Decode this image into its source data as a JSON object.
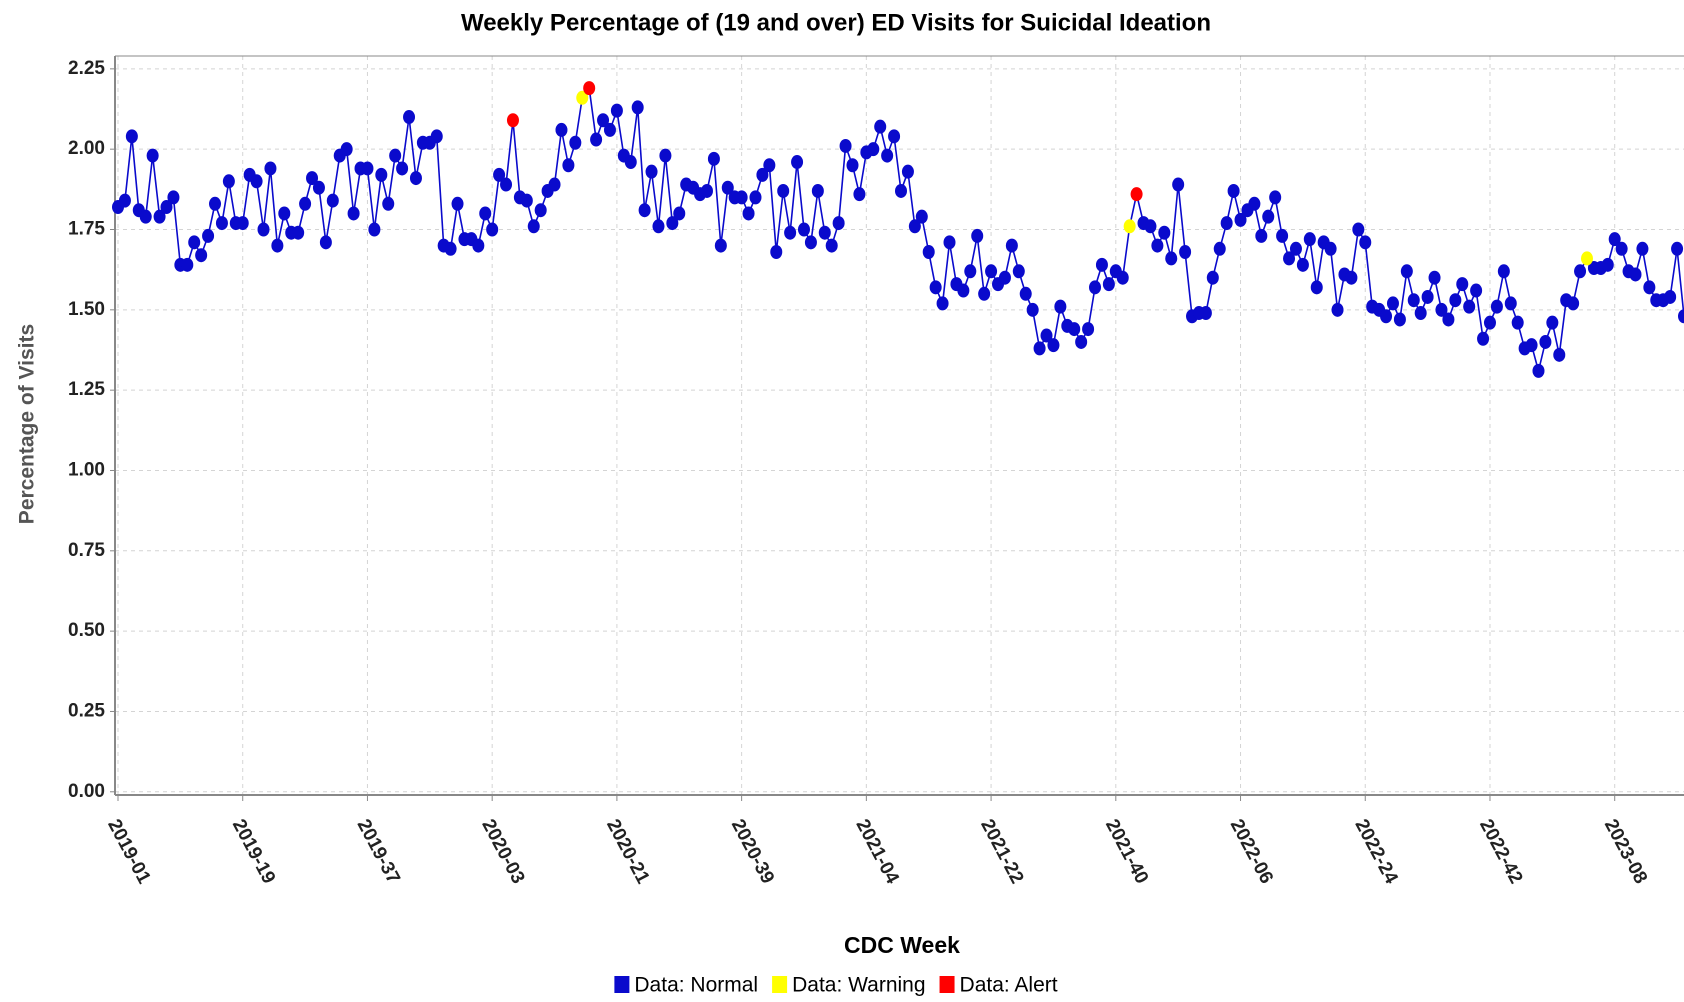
{
  "chart_data": {
    "type": "line",
    "title": "Weekly Percentage of (19 and over) ED Visits for Suicidal Ideation",
    "x_label": "CDC Week",
    "y_label": "Percentage of Visits",
    "categories": [
      "2019-01",
      null,
      null,
      null,
      null,
      null,
      null,
      null,
      null,
      null,
      null,
      null,
      null,
      null,
      null,
      null,
      null,
      null,
      "2019-19",
      null,
      null,
      null,
      null,
      null,
      null,
      null,
      null,
      null,
      null,
      null,
      null,
      null,
      null,
      null,
      null,
      null,
      "2019-37",
      null,
      null,
      null,
      null,
      null,
      null,
      null,
      null,
      null,
      null,
      null,
      null,
      null,
      null,
      null,
      null,
      null,
      "2020-03",
      null,
      null,
      null,
      null,
      null,
      null,
      null,
      null,
      null,
      null,
      null,
      null,
      null,
      null,
      null,
      null,
      null,
      "2020-21",
      null,
      null,
      null,
      null,
      null,
      null,
      null,
      null,
      null,
      null,
      null,
      null,
      null,
      null,
      null,
      null,
      null,
      "2020-39",
      null,
      null,
      null,
      null,
      null,
      null,
      null,
      null,
      null,
      null,
      null,
      null,
      null,
      null,
      null,
      null,
      null,
      "2021-04",
      null,
      null,
      null,
      null,
      null,
      null,
      null,
      null,
      null,
      null,
      null,
      null,
      null,
      null,
      null,
      null,
      null,
      "2021-22",
      null,
      null,
      null,
      null,
      null,
      null,
      null,
      null,
      null,
      null,
      null,
      null,
      null,
      null,
      null,
      null,
      null,
      "2021-40",
      null,
      null,
      null,
      null,
      null,
      null,
      null,
      null,
      null,
      null,
      null,
      null,
      null,
      null,
      null,
      null,
      null,
      "2022-06",
      null,
      null,
      null,
      null,
      null,
      null,
      null,
      null,
      null,
      null,
      null,
      null,
      null,
      null,
      null,
      null,
      null,
      "2022-24",
      null,
      null,
      null,
      null,
      null,
      null,
      null,
      null,
      null,
      null,
      null,
      null,
      null,
      null,
      null,
      null,
      null,
      "2022-42",
      null,
      null,
      null,
      null,
      null,
      null,
      null,
      null,
      null,
      null,
      null,
      null,
      null,
      null,
      null,
      null,
      null,
      "2023-08",
      null,
      null,
      null,
      null,
      null,
      null,
      null,
      null,
      null,
      null
    ],
    "series": [
      {
        "name": "Data: Normal",
        "color": "#0a0acc",
        "values": [
          1.82,
          1.84,
          2.04,
          1.81,
          1.79,
          1.98,
          1.79,
          1.82,
          1.85,
          1.64,
          1.64,
          1.71,
          1.67,
          1.73,
          1.83,
          1.77,
          1.9,
          1.77,
          1.77,
          1.92,
          1.9,
          1.75,
          1.94,
          1.7,
          1.8,
          1.74,
          1.74,
          1.83,
          1.91,
          1.88,
          1.71,
          1.84,
          1.98,
          2.0,
          1.8,
          1.94,
          1.94,
          1.75,
          1.92,
          1.83,
          1.98,
          1.94,
          2.1,
          1.91,
          2.02,
          2.02,
          2.04,
          1.7,
          1.69,
          1.83,
          1.72,
          1.72,
          1.7,
          1.8,
          1.75,
          1.92,
          1.89,
          null,
          1.85,
          1.84,
          1.76,
          1.81,
          1.87,
          1.89,
          2.06,
          1.95,
          2.02,
          null,
          null,
          2.03,
          2.09,
          2.06,
          2.12,
          1.98,
          1.96,
          2.13,
          1.81,
          1.93,
          1.76,
          1.98,
          1.77,
          1.8,
          1.89,
          1.88,
          1.86,
          1.87,
          1.97,
          1.7,
          1.88,
          1.85,
          1.85,
          1.8,
          1.85,
          1.92,
          1.95,
          1.68,
          1.87,
          1.74,
          1.96,
          1.75,
          1.71,
          1.87,
          1.74,
          1.7,
          1.77,
          2.01,
          1.95,
          1.86,
          1.99,
          2.0,
          2.07,
          1.98,
          2.04,
          1.87,
          1.93,
          1.76,
          1.79,
          1.68,
          1.57,
          1.52,
          1.71,
          1.58,
          1.56,
          1.62,
          1.73,
          1.55,
          1.62,
          1.58,
          1.6,
          1.7,
          1.62,
          1.55,
          1.5,
          1.38,
          1.42,
          1.39,
          1.51,
          1.45,
          1.44,
          1.4,
          1.44,
          1.57,
          1.64,
          1.58,
          1.62,
          1.6,
          null,
          null,
          1.77,
          1.76,
          1.7,
          1.74,
          1.66,
          1.89,
          1.68,
          1.48,
          1.49,
          1.49,
          1.6,
          1.69,
          1.77,
          1.87,
          1.78,
          1.81,
          1.83,
          1.73,
          1.79,
          1.85,
          1.73,
          1.66,
          1.69,
          1.64,
          1.72,
          1.57,
          1.71,
          1.69,
          1.5,
          1.61,
          1.6,
          1.75,
          1.71,
          1.51,
          1.5,
          1.48,
          1.52,
          1.47,
          1.62,
          1.53,
          1.49,
          1.54,
          1.6,
          1.5,
          1.47,
          1.53,
          1.58,
          1.51,
          1.56,
          1.41,
          1.46,
          1.51,
          1.62,
          1.52,
          1.46,
          1.38,
          1.39,
          1.31,
          1.4,
          1.46,
          1.36,
          1.53,
          1.52,
          1.62,
          null,
          1.63,
          1.63,
          1.64,
          1.72,
          1.69,
          1.62,
          1.61,
          1.69,
          1.57,
          1.53,
          1.53,
          1.54,
          1.69,
          1.48
        ]
      },
      {
        "name": "Data: Warning",
        "color": "#ffff00",
        "values": [
          null,
          null,
          null,
          null,
          null,
          null,
          null,
          null,
          null,
          null,
          null,
          null,
          null,
          null,
          null,
          null,
          null,
          null,
          null,
          null,
          null,
          null,
          null,
          null,
          null,
          null,
          null,
          null,
          null,
          null,
          null,
          null,
          null,
          null,
          null,
          null,
          null,
          null,
          null,
          null,
          null,
          null,
          null,
          null,
          null,
          null,
          null,
          null,
          null,
          null,
          null,
          null,
          null,
          null,
          null,
          null,
          null,
          null,
          null,
          null,
          null,
          null,
          null,
          null,
          null,
          null,
          null,
          2.16,
          null,
          null,
          null,
          null,
          null,
          null,
          null,
          null,
          null,
          null,
          null,
          null,
          null,
          null,
          null,
          null,
          null,
          null,
          null,
          null,
          null,
          null,
          null,
          null,
          null,
          null,
          null,
          null,
          null,
          null,
          null,
          null,
          null,
          null,
          null,
          null,
          null,
          null,
          null,
          null,
          null,
          null,
          null,
          null,
          null,
          null,
          null,
          null,
          null,
          null,
          null,
          null,
          null,
          null,
          null,
          null,
          null,
          null,
          null,
          null,
          null,
          null,
          null,
          null,
          null,
          null,
          null,
          null,
          null,
          null,
          null,
          null,
          null,
          null,
          null,
          null,
          null,
          null,
          1.76,
          null,
          null,
          null,
          null,
          null,
          null,
          null,
          null,
          null,
          null,
          null,
          null,
          null,
          null,
          null,
          null,
          null,
          null,
          null,
          null,
          null,
          null,
          null,
          null,
          null,
          null,
          null,
          null,
          null,
          null,
          null,
          null,
          null,
          null,
          null,
          null,
          null,
          null,
          null,
          null,
          null,
          null,
          null,
          null,
          null,
          null,
          null,
          null,
          null,
          null,
          null,
          null,
          null,
          null,
          null,
          null,
          null,
          null,
          null,
          null,
          null,
          null,
          null,
          null,
          null,
          1.66,
          null,
          null,
          null,
          null,
          null,
          null,
          null,
          null,
          null,
          null,
          null,
          null,
          null,
          null
        ]
      },
      {
        "name": "Data: Alert",
        "color": "#ff0000",
        "values": [
          null,
          null,
          null,
          null,
          null,
          null,
          null,
          null,
          null,
          null,
          null,
          null,
          null,
          null,
          null,
          null,
          null,
          null,
          null,
          null,
          null,
          null,
          null,
          null,
          null,
          null,
          null,
          null,
          null,
          null,
          null,
          null,
          null,
          null,
          null,
          null,
          null,
          null,
          null,
          null,
          null,
          null,
          null,
          null,
          null,
          null,
          null,
          null,
          null,
          null,
          null,
          null,
          null,
          null,
          null,
          null,
          null,
          2.09,
          null,
          null,
          null,
          null,
          null,
          null,
          null,
          null,
          null,
          null,
          2.19,
          null,
          null,
          null,
          null,
          null,
          null,
          null,
          null,
          null,
          null,
          null,
          null,
          null,
          null,
          null,
          null,
          null,
          null,
          null,
          null,
          null,
          null,
          null,
          null,
          null,
          null,
          null,
          null,
          null,
          null,
          null,
          null,
          null,
          null,
          null,
          null,
          null,
          null,
          null,
          null,
          null,
          null,
          null,
          null,
          null,
          null,
          null,
          null,
          null,
          null,
          null,
          null,
          null,
          null,
          null,
          null,
          null,
          null,
          null,
          null,
          null,
          null,
          null,
          null,
          null,
          null,
          null,
          null,
          null,
          null,
          null,
          null,
          null,
          null,
          null,
          null,
          null,
          null,
          1.86,
          null,
          null,
          null,
          null,
          null,
          null,
          null,
          null,
          null,
          null,
          null,
          null,
          null,
          null,
          null,
          null,
          null,
          null,
          null,
          null,
          null,
          null,
          null,
          null,
          null,
          null,
          null,
          null,
          null,
          null,
          null,
          null,
          null,
          null,
          null,
          null,
          null,
          null,
          null,
          null,
          null,
          null,
          null,
          null,
          null,
          null,
          null,
          null,
          null,
          null,
          null,
          null,
          null,
          null,
          null,
          null,
          null,
          null,
          null,
          null,
          null,
          null,
          null,
          null,
          null,
          null,
          null,
          null,
          null,
          null,
          null,
          null,
          null,
          null,
          null,
          null,
          null,
          null,
          null
        ]
      }
    ],
    "line_color": "#0a0acc",
    "ylim": [
      -0.01,
      2.29
    ],
    "yticks": [
      {
        "value": 0,
        "label": "0.00"
      },
      {
        "value": 0.25,
        "label": "0.25"
      },
      {
        "value": 0.5,
        "label": "0.50"
      },
      {
        "value": 0.75,
        "label": "0.75"
      },
      {
        "value": 1,
        "label": "1.00"
      },
      {
        "value": 1.25,
        "label": "1.25"
      },
      {
        "value": 1.5,
        "label": "1.50"
      },
      {
        "value": 1.75,
        "label": "1.75"
      },
      {
        "value": 2,
        "label": "2.00"
      },
      {
        "value": 2.25,
        "label": "2.25"
      }
    ],
    "grid": true,
    "legend": "bottom"
  }
}
